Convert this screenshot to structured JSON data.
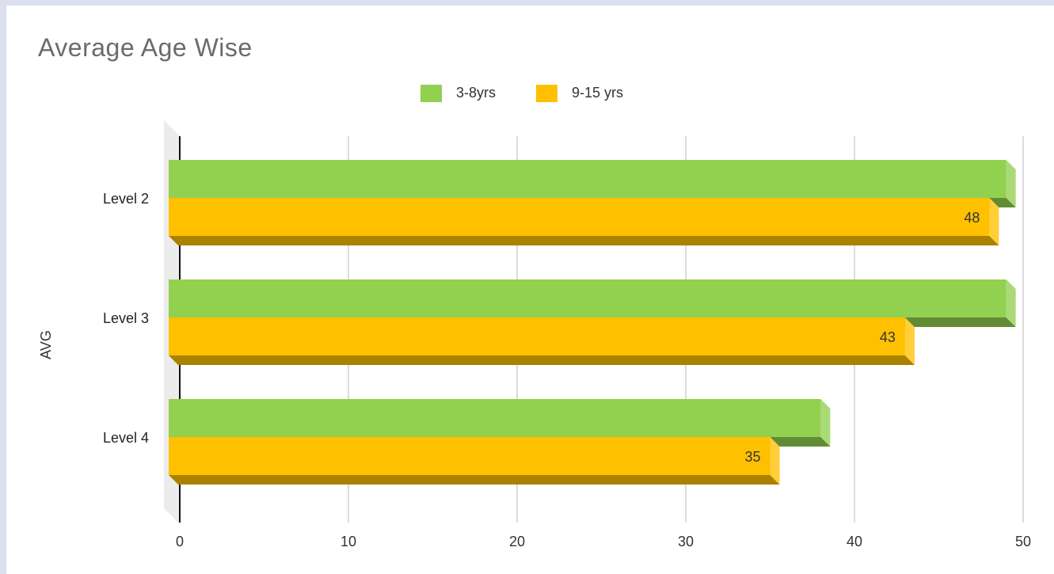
{
  "chart_data": {
    "type": "bar",
    "orientation": "horizontal",
    "title": "Average Age Wise",
    "ylabel": "AVG",
    "xlabel": "",
    "categories": [
      "Level 2",
      "Level 3",
      "Level 4"
    ],
    "series": [
      {
        "name": "3-8yrs",
        "values": [
          49,
          49,
          38
        ],
        "color": "#92d050"
      },
      {
        "name": "9-15 yrs",
        "values": [
          48,
          43,
          35
        ],
        "color": "#ffc000",
        "data_labels": [
          "48",
          "43",
          "35"
        ]
      }
    ],
    "xlim": [
      0,
      50
    ],
    "xticks": [
      "0",
      "10",
      "20",
      "30",
      "40",
      "50"
    ],
    "grid": true,
    "legend_position": "top-center",
    "style": "3d"
  }
}
